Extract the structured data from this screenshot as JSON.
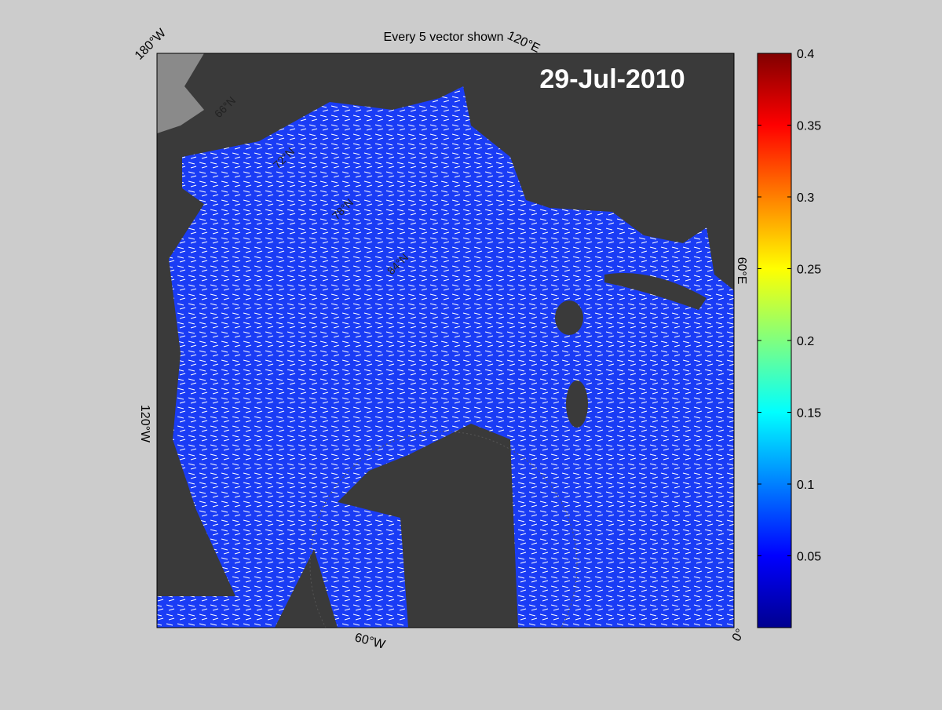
{
  "title": "Every 5 vector shown",
  "date": "29-Jul-2010",
  "longitude_labels": [
    "180°W",
    "120°E",
    "60°E",
    "0°",
    "60°W",
    "120°W"
  ],
  "latitude_labels": [
    "66°N",
    "72°N",
    "78°N",
    "84°N"
  ],
  "colorbar": {
    "clim": [
      0,
      0.4
    ],
    "ticks": [
      0.05,
      0.1,
      0.15,
      0.2,
      0.25,
      0.3,
      0.35,
      0.4
    ],
    "colormap": "jet"
  }
}
